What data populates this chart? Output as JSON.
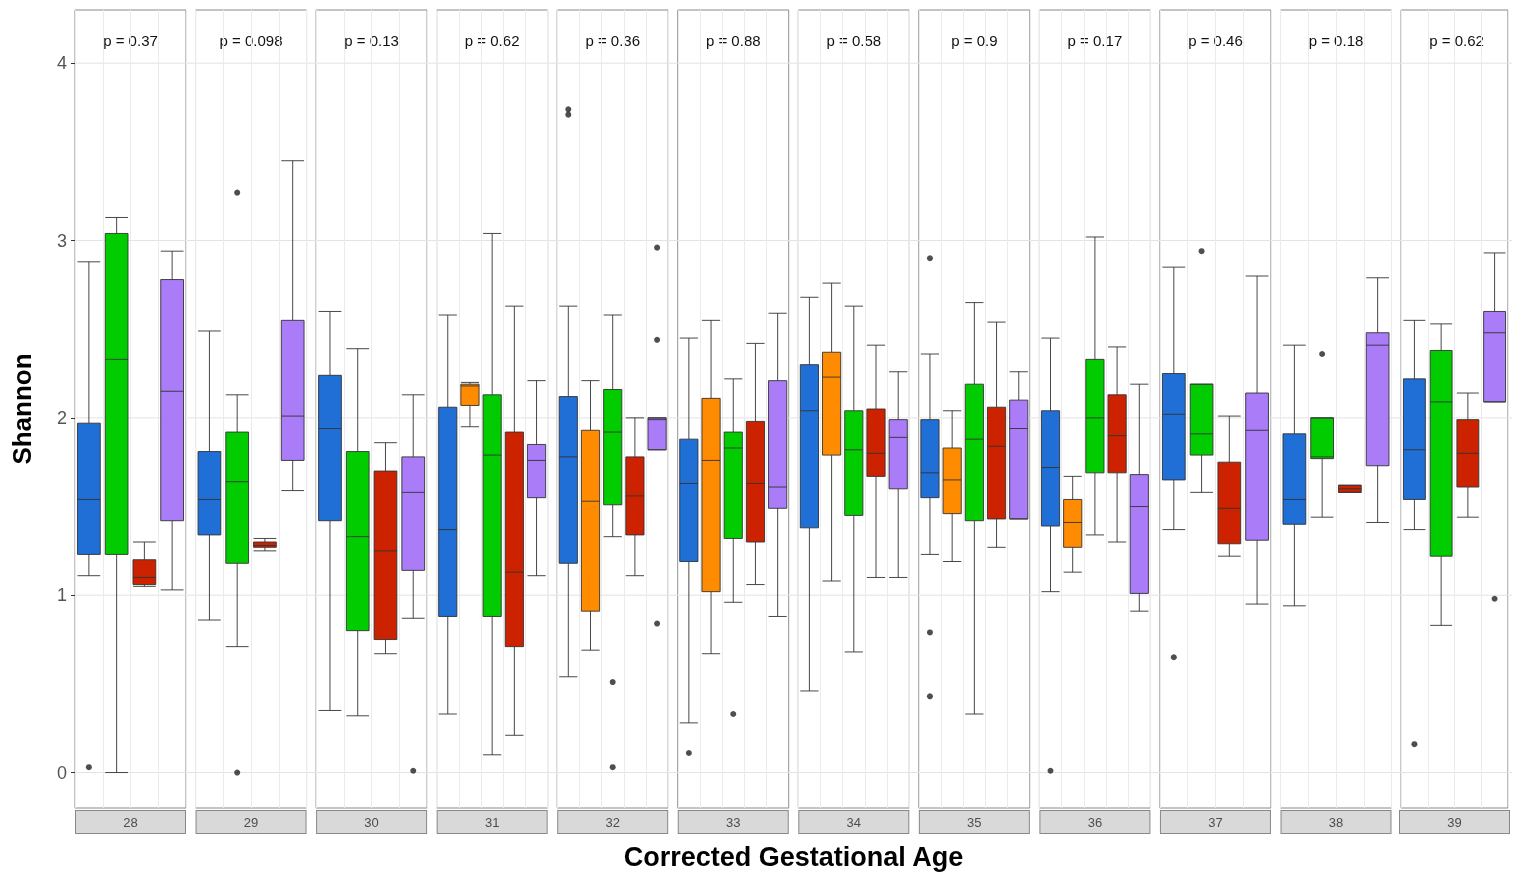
{
  "chart_data": {
    "type": "box",
    "ylabel": "Shannon",
    "xlabel": "Corrected Gestational Age",
    "categories": [
      "28",
      "29",
      "30",
      "31",
      "32",
      "33",
      "34",
      "35",
      "36",
      "37",
      "38",
      "39"
    ],
    "ylim": [
      -0.2,
      4.3
    ],
    "yticks": [
      0,
      1,
      2,
      3,
      4
    ],
    "grid": true,
    "annotations": [
      "p = 0.37",
      "p = 0.098",
      "p = 0.13",
      "p = 0.62",
      "p = 0.36",
      "p = 0.88",
      "p = 0.58",
      "p = 0.9",
      "p = 0.17",
      "p = 0.46",
      "p = 0.18",
      "p = 0.62"
    ],
    "series": [
      {
        "color": "#1f6fd6",
        "boxes": [
          {
            "low": 1.11,
            "q1": 1.23,
            "median": 1.54,
            "q3": 1.97,
            "high": 2.88,
            "outliers": [
              0.03
            ]
          },
          {
            "low": 0.86,
            "q1": 1.34,
            "median": 1.54,
            "q3": 1.81,
            "high": 2.49
          },
          {
            "low": 0.35,
            "q1": 1.42,
            "median": 1.94,
            "q3": 2.24,
            "high": 2.6
          },
          {
            "low": 0.33,
            "q1": 0.88,
            "median": 1.37,
            "q3": 2.06,
            "high": 2.58
          },
          {
            "low": 0.54,
            "q1": 1.18,
            "median": 1.78,
            "q3": 2.12,
            "high": 2.63,
            "outliers": [
              3.74,
              3.71
            ]
          },
          {
            "low": 0.28,
            "q1": 1.19,
            "median": 1.63,
            "q3": 1.88,
            "high": 2.45,
            "outliers": [
              0.11
            ]
          },
          {
            "low": 0.46,
            "q1": 1.38,
            "median": 2.04,
            "q3": 2.3,
            "high": 2.68
          },
          {
            "low": 1.23,
            "q1": 1.55,
            "median": 1.69,
            "q3": 1.99,
            "high": 2.36,
            "outliers": [
              2.9,
              0.79,
              0.43
            ]
          },
          {
            "low": 1.02,
            "q1": 1.39,
            "median": 1.72,
            "q3": 2.04,
            "high": 2.45,
            "outliers": [
              0.01
            ]
          },
          {
            "low": 1.37,
            "q1": 1.65,
            "median": 2.02,
            "q3": 2.25,
            "high": 2.85,
            "outliers": [
              0.65
            ]
          },
          {
            "low": 0.94,
            "q1": 1.4,
            "median": 1.54,
            "q3": 1.91,
            "high": 2.41
          },
          {
            "low": 1.37,
            "q1": 1.54,
            "median": 1.82,
            "q3": 2.22,
            "high": 2.55,
            "outliers": [
              0.16
            ]
          }
        ]
      },
      {
        "color": "#ff8c00",
        "boxes": [
          null,
          null,
          null,
          {
            "low": 1.95,
            "q1": 2.07,
            "median": 2.18,
            "q3": 2.19,
            "high": 2.2
          },
          {
            "low": 0.69,
            "q1": 0.91,
            "median": 1.53,
            "q3": 1.93,
            "high": 2.21
          },
          {
            "low": 0.67,
            "q1": 1.02,
            "median": 1.76,
            "q3": 2.11,
            "high": 2.55
          },
          {
            "low": 1.08,
            "q1": 1.79,
            "median": 2.23,
            "q3": 2.37,
            "high": 2.76
          },
          {
            "low": 1.19,
            "q1": 1.46,
            "median": 1.65,
            "q3": 1.83,
            "high": 2.04
          },
          {
            "low": 1.13,
            "q1": 1.27,
            "median": 1.41,
            "q3": 1.54,
            "high": 1.67
          },
          null,
          null,
          null
        ]
      },
      {
        "color": "#00cc00",
        "boxes": [
          {
            "low": 0,
            "q1": 1.23,
            "median": 2.33,
            "q3": 3.04,
            "high": 3.13
          },
          {
            "low": 0.71,
            "q1": 1.18,
            "median": 1.64,
            "q3": 1.92,
            "high": 2.13,
            "outliers": [
              3.27,
              0
            ]
          },
          {
            "low": 0.32,
            "q1": 0.8,
            "median": 1.33,
            "q3": 1.81,
            "high": 2.39
          },
          {
            "low": 0.1,
            "q1": 0.88,
            "median": 1.79,
            "q3": 2.13,
            "high": 3.04
          },
          {
            "low": 1.33,
            "q1": 1.51,
            "median": 1.92,
            "q3": 2.16,
            "high": 2.58,
            "outliers": [
              0.51,
              0.03
            ]
          },
          {
            "low": 0.96,
            "q1": 1.32,
            "median": 1.83,
            "q3": 1.92,
            "high": 2.22,
            "outliers": [
              0.33
            ]
          },
          {
            "low": 0.68,
            "q1": 1.45,
            "median": 1.82,
            "q3": 2.04,
            "high": 2.63
          },
          {
            "low": 0.33,
            "q1": 1.42,
            "median": 1.88,
            "q3": 2.19,
            "high": 2.65
          },
          {
            "low": 1.34,
            "q1": 1.69,
            "median": 2,
            "q3": 2.33,
            "high": 3.02
          },
          {
            "low": 1.58,
            "q1": 1.79,
            "median": 1.91,
            "q3": 2.19,
            "high": 2.19,
            "outliers": [
              2.94
            ]
          },
          {
            "low": 1.44,
            "q1": 1.77,
            "median": 1.78,
            "q3": 2,
            "high": 2,
            "outliers": [
              2.36
            ]
          },
          {
            "low": 0.83,
            "q1": 1.22,
            "median": 2.09,
            "q3": 2.38,
            "high": 2.53
          }
        ]
      },
      {
        "color": "#cc2200",
        "boxes": [
          {
            "low": 1.05,
            "q1": 1.06,
            "median": 1.1,
            "q3": 1.2,
            "high": 1.3
          },
          {
            "low": 1.25,
            "q1": 1.27,
            "median": 1.28,
            "q3": 1.3,
            "high": 1.32
          },
          {
            "low": 0.67,
            "q1": 0.75,
            "median": 1.25,
            "q3": 1.7,
            "high": 1.86
          },
          {
            "low": 0.21,
            "q1": 0.71,
            "median": 1.13,
            "q3": 1.92,
            "high": 2.63
          },
          {
            "low": 1.11,
            "q1": 1.34,
            "median": 1.56,
            "q3": 1.78,
            "high": 2
          },
          {
            "low": 1.06,
            "q1": 1.3,
            "median": 1.63,
            "q3": 1.98,
            "high": 2.42
          },
          {
            "low": 1.1,
            "q1": 1.67,
            "median": 1.8,
            "q3": 2.05,
            "high": 2.41
          },
          {
            "low": 1.27,
            "q1": 1.43,
            "median": 1.84,
            "q3": 2.06,
            "high": 2.54
          },
          {
            "low": 1.3,
            "q1": 1.69,
            "median": 1.9,
            "q3": 2.13,
            "high": 2.4
          },
          {
            "low": 1.22,
            "q1": 1.29,
            "median": 1.49,
            "q3": 1.75,
            "high": 2.01
          },
          {
            "low": 1.58,
            "q1": 1.58,
            "median": 1.6,
            "q3": 1.62,
            "high": 1.62
          },
          {
            "low": 1.44,
            "q1": 1.61,
            "median": 1.8,
            "q3": 1.99,
            "high": 2.14
          }
        ]
      },
      {
        "color": "#aa7cf8",
        "boxes": [
          {
            "low": 1.03,
            "q1": 1.42,
            "median": 2.15,
            "q3": 2.78,
            "high": 2.94
          },
          {
            "low": 1.59,
            "q1": 1.76,
            "median": 2.01,
            "q3": 2.55,
            "high": 3.45
          },
          {
            "low": 0.87,
            "q1": 1.14,
            "median": 1.58,
            "q3": 1.78,
            "high": 2.13,
            "outliers": [
              0.01
            ]
          },
          {
            "low": 1.11,
            "q1": 1.55,
            "median": 1.76,
            "q3": 1.85,
            "high": 2.21
          },
          {
            "low": 1.82,
            "q1": 1.82,
            "median": 1.99,
            "q3": 2,
            "high": 2,
            "outliers": [
              2.96,
              2.44,
              0.84
            ]
          },
          {
            "low": 0.88,
            "q1": 1.49,
            "median": 1.61,
            "q3": 2.21,
            "high": 2.59
          },
          {
            "low": 1.1,
            "q1": 1.6,
            "median": 1.89,
            "q3": 1.99,
            "high": 2.26
          },
          {
            "low": 1.43,
            "q1": 1.43,
            "median": 1.94,
            "q3": 2.1,
            "high": 2.26
          },
          {
            "low": 0.91,
            "q1": 1.01,
            "median": 1.5,
            "q3": 1.68,
            "high": 2.19
          },
          {
            "low": 0.95,
            "q1": 1.31,
            "median": 1.93,
            "q3": 2.14,
            "high": 2.8
          },
          {
            "low": 1.41,
            "q1": 1.73,
            "median": 2.41,
            "q3": 2.48,
            "high": 2.79
          },
          {
            "low": 2.09,
            "q1": 2.09,
            "median": 2.48,
            "q3": 2.6,
            "high": 2.93,
            "outliers": [
              0.98
            ]
          }
        ]
      }
    ]
  }
}
